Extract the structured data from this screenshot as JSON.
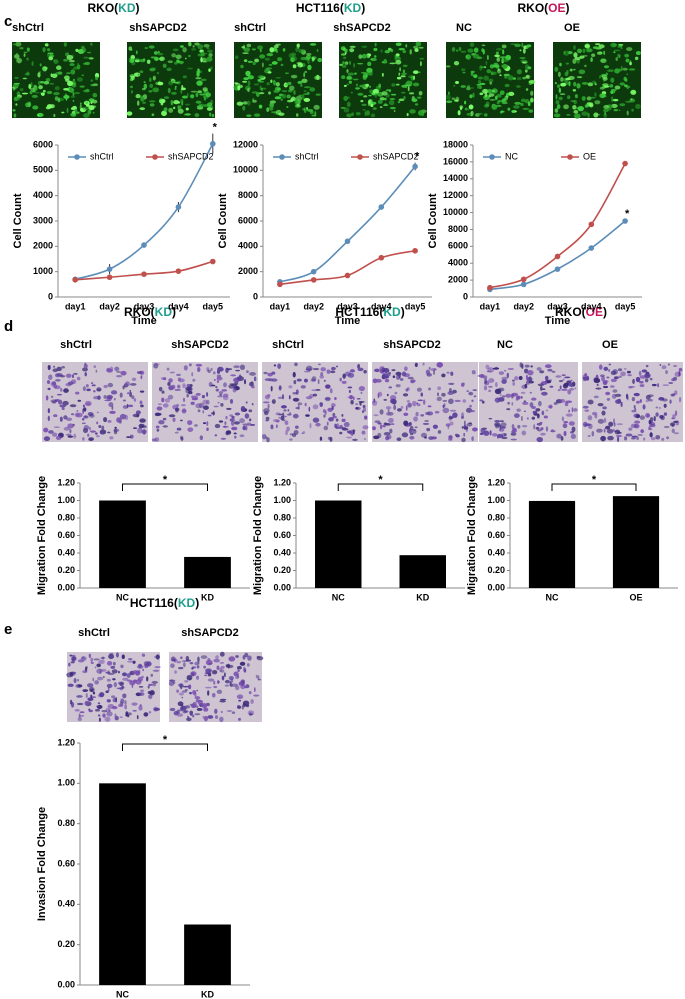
{
  "panels": [
    {
      "label": "c",
      "image_style": "green",
      "groups": [
        {
          "header": [
            "RKO(",
            "KD",
            ")"
          ],
          "tag_color": "#1f9e8c",
          "images": [
            "shCtrl",
            "shSAPCD2"
          ]
        },
        {
          "header": [
            "HCT116(",
            "KD",
            ")"
          ],
          "tag_color": "#1f9e8c",
          "images": [
            "shCtrl",
            "shSAPCD2"
          ]
        },
        {
          "header": [
            "RKO(",
            "OE",
            ")"
          ],
          "tag_color": "#c2185b",
          "images": [
            "NC",
            "OE"
          ]
        }
      ]
    },
    {
      "label": "d",
      "image_style": "purple",
      "groups": [
        {
          "header": [
            "RKO(",
            "KD",
            ")"
          ],
          "tag_color": "#1f9e8c",
          "images": [
            "shCtrl",
            "shSAPCD2"
          ]
        },
        {
          "header": [
            "HCT116(",
            "KD",
            ")"
          ],
          "tag_color": "#1f9e8c",
          "images": [
            "shCtrl",
            "shSAPCD2"
          ]
        },
        {
          "header": [
            "RKO(",
            "OE",
            ")"
          ],
          "tag_color": "#c2185b",
          "images": [
            "NC",
            "OE"
          ]
        }
      ]
    },
    {
      "label": "e",
      "image_style": "purple",
      "groups": [
        {
          "header": [
            "HCT116(",
            "KD",
            ")"
          ],
          "tag_color": "#1f9e8c",
          "images": [
            "shCtrl",
            "shSAPCD2"
          ]
        }
      ]
    }
  ],
  "chart_data": [
    {
      "type": "line",
      "xlabel": "Time",
      "ylabel": "Cell Count",
      "categories": [
        "day1",
        "day2",
        "day3",
        "day4",
        "day5"
      ],
      "ylim": [
        0,
        6000
      ],
      "yticks": [
        0,
        1000,
        2000,
        3000,
        4000,
        5000,
        6000
      ],
      "annotation": "*",
      "series": [
        {
          "name": "shCtrl",
          "color": "#5b8db8",
          "values": [
            700,
            1100,
            2050,
            3550,
            6050
          ],
          "errors": [
            50,
            200,
            100,
            200,
            400
          ]
        },
        {
          "name": "shSAPCD2",
          "color": "#c0504d",
          "values": [
            680,
            780,
            900,
            1020,
            1400
          ],
          "errors": [
            30,
            30,
            40,
            40,
            50
          ]
        }
      ]
    },
    {
      "type": "line",
      "xlabel": "Time",
      "ylabel": "Cell Count",
      "categories": [
        "day1",
        "day2",
        "day3",
        "day4",
        "day5"
      ],
      "ylim": [
        0,
        12000
      ],
      "yticks": [
        0,
        2000,
        4000,
        6000,
        8000,
        10000,
        12000
      ],
      "annotation": "*",
      "series": [
        {
          "name": "shCtrl",
          "color": "#5b8db8",
          "values": [
            1200,
            2000,
            4400,
            7100,
            10300
          ],
          "errors": [
            100,
            100,
            100,
            100,
            300
          ]
        },
        {
          "name": "shSAPCD2",
          "color": "#c0504d",
          "values": [
            1000,
            1350,
            1700,
            3100,
            3650
          ],
          "errors": [
            80,
            80,
            80,
            150,
            100
          ]
        }
      ]
    },
    {
      "type": "line",
      "xlabel": "Time",
      "ylabel": "Cell Count",
      "categories": [
        "day1",
        "day2",
        "day3",
        "day4",
        "day5"
      ],
      "ylim": [
        0,
        18000
      ],
      "yticks": [
        0,
        2000,
        4000,
        6000,
        8000,
        10000,
        12000,
        14000,
        16000,
        18000
      ],
      "annotation": "*",
      "series": [
        {
          "name": "NC",
          "color": "#5b8db8",
          "values": [
            900,
            1500,
            3300,
            5800,
            9000
          ],
          "errors": [
            50,
            50,
            100,
            100,
            100
          ]
        },
        {
          "name": "OE",
          "color": "#c0504d",
          "values": [
            1100,
            2100,
            4800,
            8600,
            15800
          ],
          "errors": [
            50,
            100,
            100,
            100,
            150
          ]
        }
      ]
    },
    {
      "type": "bar",
      "ylabel": "Migration Fold Change",
      "categories": [
        "NC",
        "KD"
      ],
      "values": [
        1.0,
        0.355
      ],
      "color": "#000000",
      "annotation": "*",
      "ylim": [
        0,
        1.2
      ],
      "yticks": [
        {
          "value": 0,
          "label": "0.00"
        },
        {
          "value": 0.2,
          "label": "0.20"
        },
        {
          "value": 0.4,
          "label": "0.40"
        },
        {
          "value": 0.6,
          "label": "0.60"
        },
        {
          "value": 0.8,
          "label": "0.80"
        },
        {
          "value": 1.0,
          "label": "1.00"
        },
        {
          "value": 1.2,
          "label": "1.20"
        }
      ]
    },
    {
      "type": "bar",
      "ylabel": "Migration Fold Change",
      "categories": [
        "NC",
        "KD"
      ],
      "values": [
        1.0,
        0.375
      ],
      "color": "#000000",
      "annotation": "*",
      "ylim": [
        0,
        1.2
      ],
      "yticks": [
        {
          "value": 0,
          "label": "0.00"
        },
        {
          "value": 0.2,
          "label": "0.20"
        },
        {
          "value": 0.4,
          "label": "0.40"
        },
        {
          "value": 0.6,
          "label": "0.60"
        },
        {
          "value": 0.8,
          "label": "0.80"
        },
        {
          "value": 1.0,
          "label": "1.00"
        },
        {
          "value": 1.2,
          "label": "1.20"
        }
      ]
    },
    {
      "type": "bar",
      "ylabel": "Migration Fold Change",
      "categories": [
        "NC",
        "OE"
      ],
      "values": [
        0.995,
        1.05
      ],
      "color": "#000000",
      "annotation": "*",
      "ylim": [
        0,
        1.2
      ],
      "yticks": [
        {
          "value": 0,
          "label": "0.00"
        },
        {
          "value": 0.2,
          "label": "0.20"
        },
        {
          "value": 0.4,
          "label": "0.40"
        },
        {
          "value": 0.6,
          "label": "0.60"
        },
        {
          "value": 0.8,
          "label": "0.80"
        },
        {
          "value": 1.0,
          "label": "1.00"
        },
        {
          "value": 1.2,
          "label": "1.20"
        }
      ]
    },
    {
      "type": "bar",
      "ylabel": "Invasion Fold Change",
      "categories": [
        "NC",
        "KD"
      ],
      "values": [
        1.0,
        0.3
      ],
      "color": "#000000",
      "annotation": "*",
      "ylim": [
        0,
        1.2
      ],
      "yticks": [
        {
          "value": 0,
          "label": "0.00"
        },
        {
          "value": 0.2,
          "label": "0.20"
        },
        {
          "value": 0.4,
          "label": "0.40"
        },
        {
          "value": 0.6,
          "label": "0.60"
        },
        {
          "value": 0.8,
          "label": "0.80"
        },
        {
          "value": 1.0,
          "label": "1.00"
        },
        {
          "value": 1.2,
          "label": "1.20"
        }
      ]
    }
  ]
}
